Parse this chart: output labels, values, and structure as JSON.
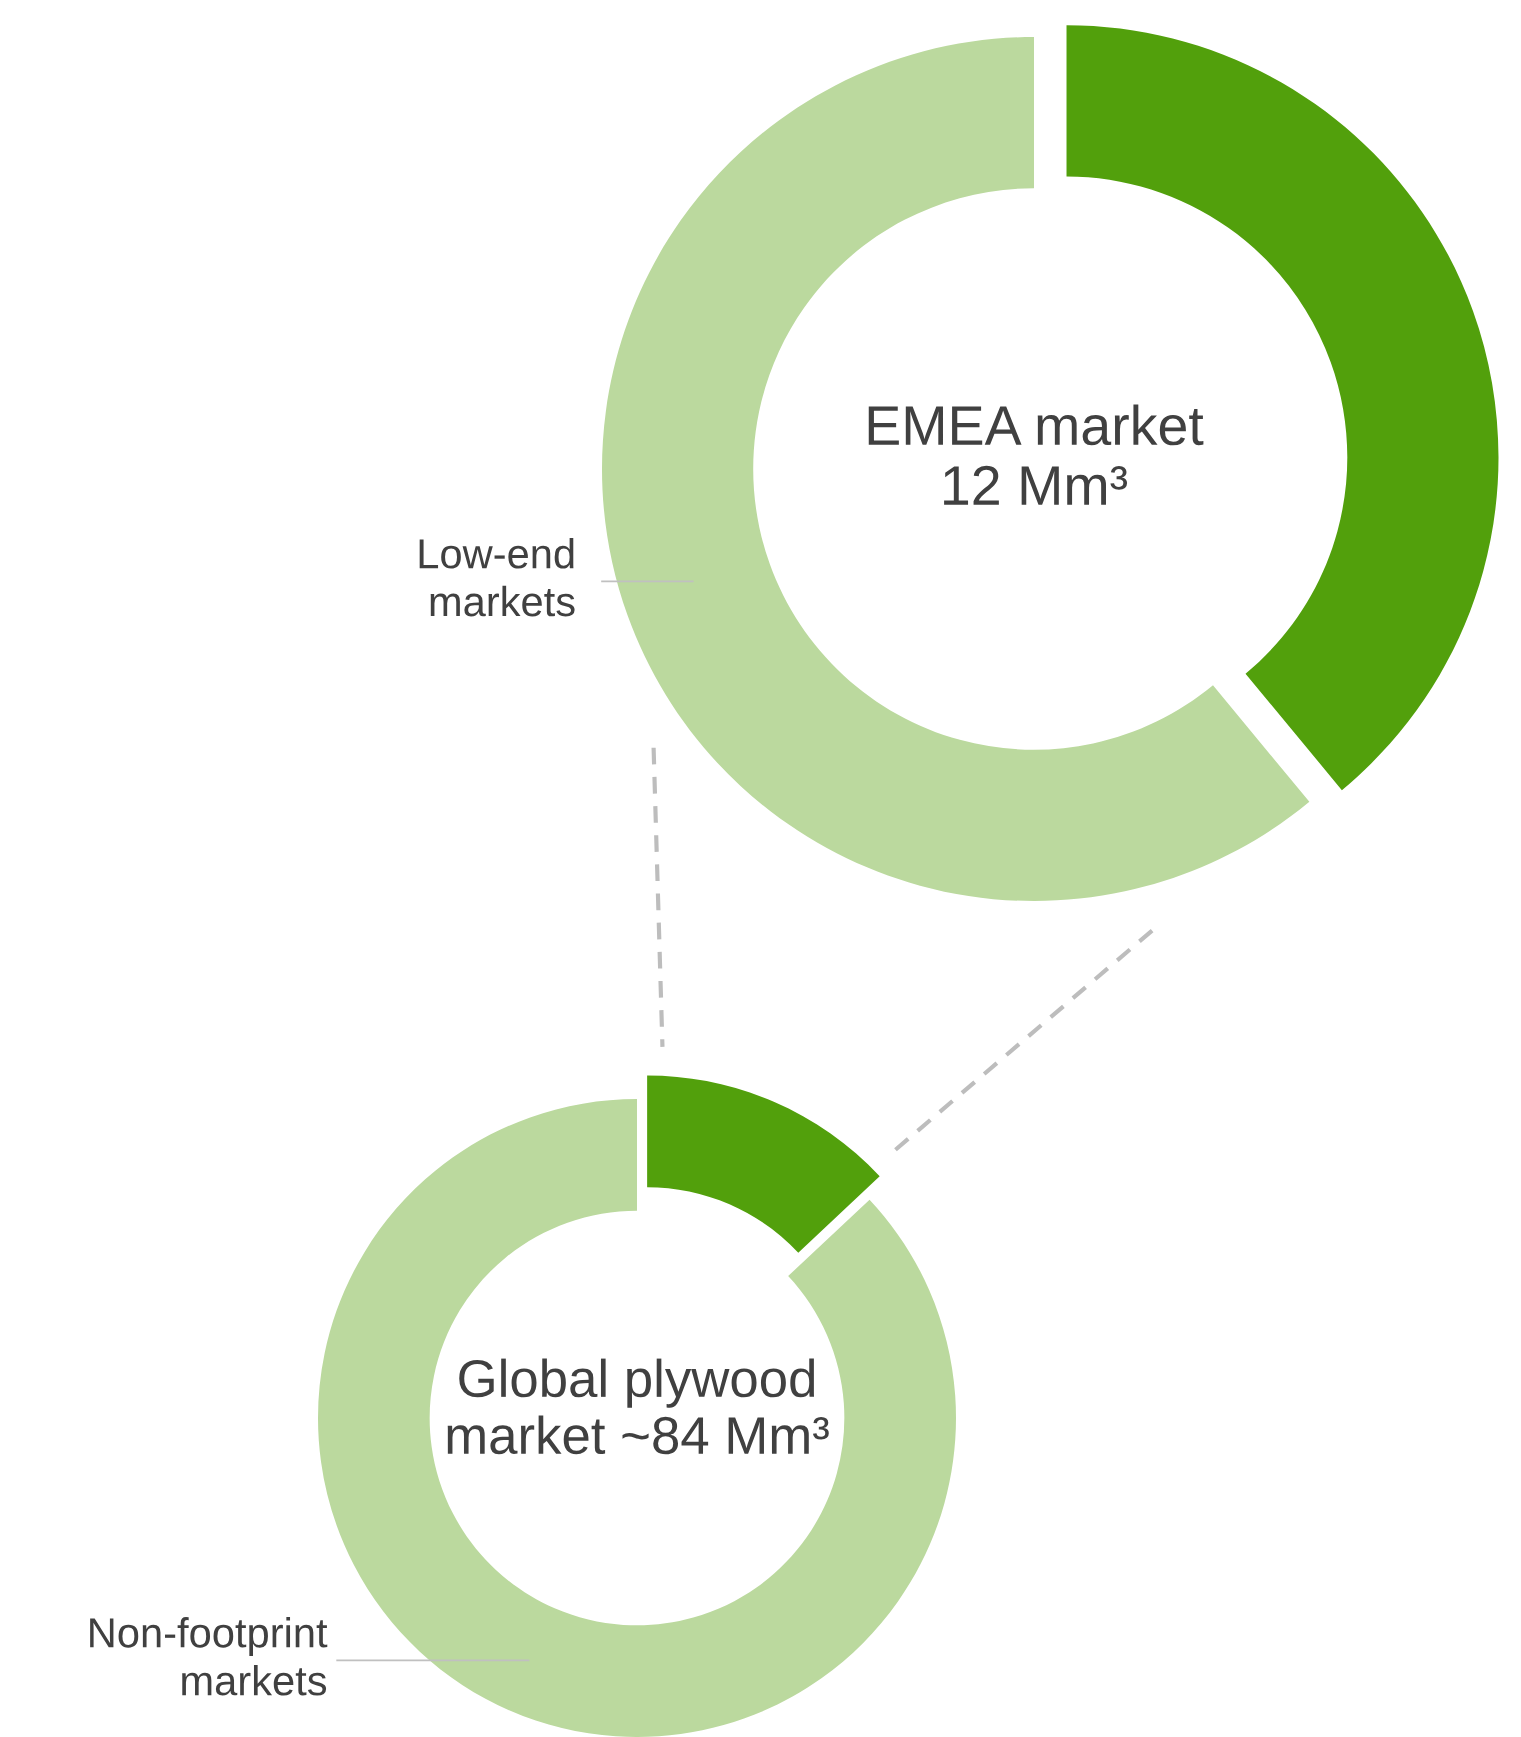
{
  "chart_data": [
    {
      "type": "donut",
      "title": "EMEA market\n12 Mm³",
      "categories": [
        null,
        "Low-end\nmarkets"
      ],
      "values": [
        39,
        61
      ],
      "colors": [
        "#52a00c",
        "#bbd99e"
      ],
      "legend": false
    },
    {
      "type": "donut",
      "title": "Global plywood\nmarket ~84 Mm³",
      "categories": [
        null,
        "Non-footprint\nmarkets"
      ],
      "values": [
        13,
        87
      ],
      "colors": [
        "#52a00c",
        "#bbd99e"
      ],
      "legend": false
    }
  ]
}
